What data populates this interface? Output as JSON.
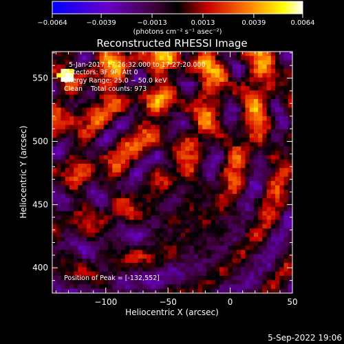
{
  "chart_data": {
    "type": "heatmap",
    "title": "Reconstructed RHESSI Image",
    "xlabel": "Heliocentric X (arcsec)",
    "ylabel": "Heliocentric Y (arcsec)",
    "xlim": [
      -143,
      50
    ],
    "ylim": [
      380,
      571
    ],
    "x_ticks": [
      -100,
      -50,
      0,
      50
    ],
    "y_ticks": [
      400,
      450,
      500,
      550
    ],
    "x_tick_labels": [
      "−100",
      "−50",
      "0",
      "50"
    ],
    "y_tick_labels": [
      "400",
      "450",
      "500",
      "550"
    ],
    "colorbar": {
      "range": [
        -0.0064,
        0.0064
      ],
      "ticks": [
        -0.0064,
        -0.0039,
        -0.0013,
        0.0013,
        0.0039,
        0.0064
      ],
      "tick_labels": [
        "−0.0064",
        "−0.0039",
        "−0.0013",
        "0.0013",
        "0.0039",
        "0.0064"
      ],
      "unit_label": "(photons cm⁻² s⁻¹ asec⁻²)",
      "colors": [
        "#0000ff",
        "#6a00c8",
        "#3a0030",
        "#000000",
        "#c80000",
        "#ff7a00",
        "#ffff00",
        "#ffffff"
      ]
    },
    "annotations": {
      "time_range": "5-Jan-2017 17:26:32.000 to 17:27:20.000",
      "detectors": "Detectors: 3F 9F, Att 0",
      "energy": "Energy Range: 25.0 − 50.0 keV",
      "method": "Clean    Total counts: 973",
      "peak": "Position of Peak = [-132,552]"
    },
    "peak_position": [
      -132,
      552
    ],
    "grid": false
  },
  "footer": {
    "date": "5-Sep-2022 19:06"
  }
}
